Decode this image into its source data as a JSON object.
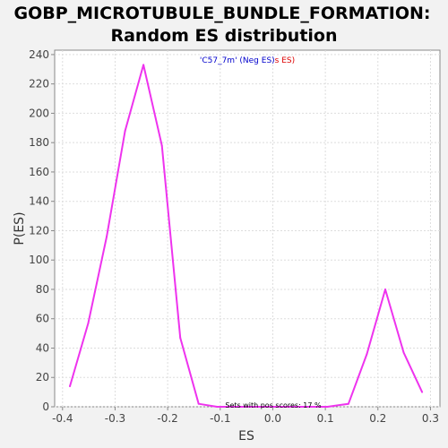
{
  "colors": {
    "background": "#f2f2f2",
    "plot_background": "#ffffff",
    "line": "#ee33ee",
    "grid": "#dddddd",
    "legend_blue": "#0000cc",
    "legend_red": "#dd0000"
  },
  "chart_data": {
    "type": "line",
    "title": [
      "GOBP_MICROTUBULE_BUNDLE_FORMATION:",
      "Random ES distribution"
    ],
    "xlabel": "ES",
    "ylabel": "P(ES)",
    "xlim": [
      -0.415,
      0.318
    ],
    "ylim": [
      0,
      243
    ],
    "x_ticks": [
      -0.4,
      -0.3,
      -0.2,
      -0.1,
      0.0,
      0.1,
      0.2,
      0.3
    ],
    "x_tick_labels": [
      "-0.4",
      "-0.3",
      "-0.2",
      "-0.1",
      "0.0",
      "0.1",
      "0.2",
      "0.3"
    ],
    "y_ticks": [
      0,
      20,
      40,
      60,
      80,
      100,
      120,
      140,
      160,
      180,
      200,
      220,
      240
    ],
    "y_tick_labels": [
      "0",
      "20",
      "40",
      "60",
      "80",
      "100",
      "120",
      "140",
      "160",
      "180",
      "200",
      "220",
      "240"
    ],
    "grid": true,
    "legend": {
      "placement": "top-center",
      "blue_text": "'C57_7m' (Neg ES)",
      "red_text": "s ES)"
    },
    "annotation": "Sets with pos scores: 17 %",
    "series": [
      {
        "x": [
          -0.386,
          -0.351,
          -0.316,
          -0.281,
          -0.246,
          -0.211,
          -0.176,
          -0.141,
          -0.106,
          0.104,
          0.144,
          0.179,
          0.214,
          0.249,
          0.284
        ],
        "y": [
          14,
          57,
          116,
          188,
          233,
          178,
          47,
          2,
          0,
          0,
          2,
          36,
          80,
          37,
          10
        ]
      }
    ]
  }
}
